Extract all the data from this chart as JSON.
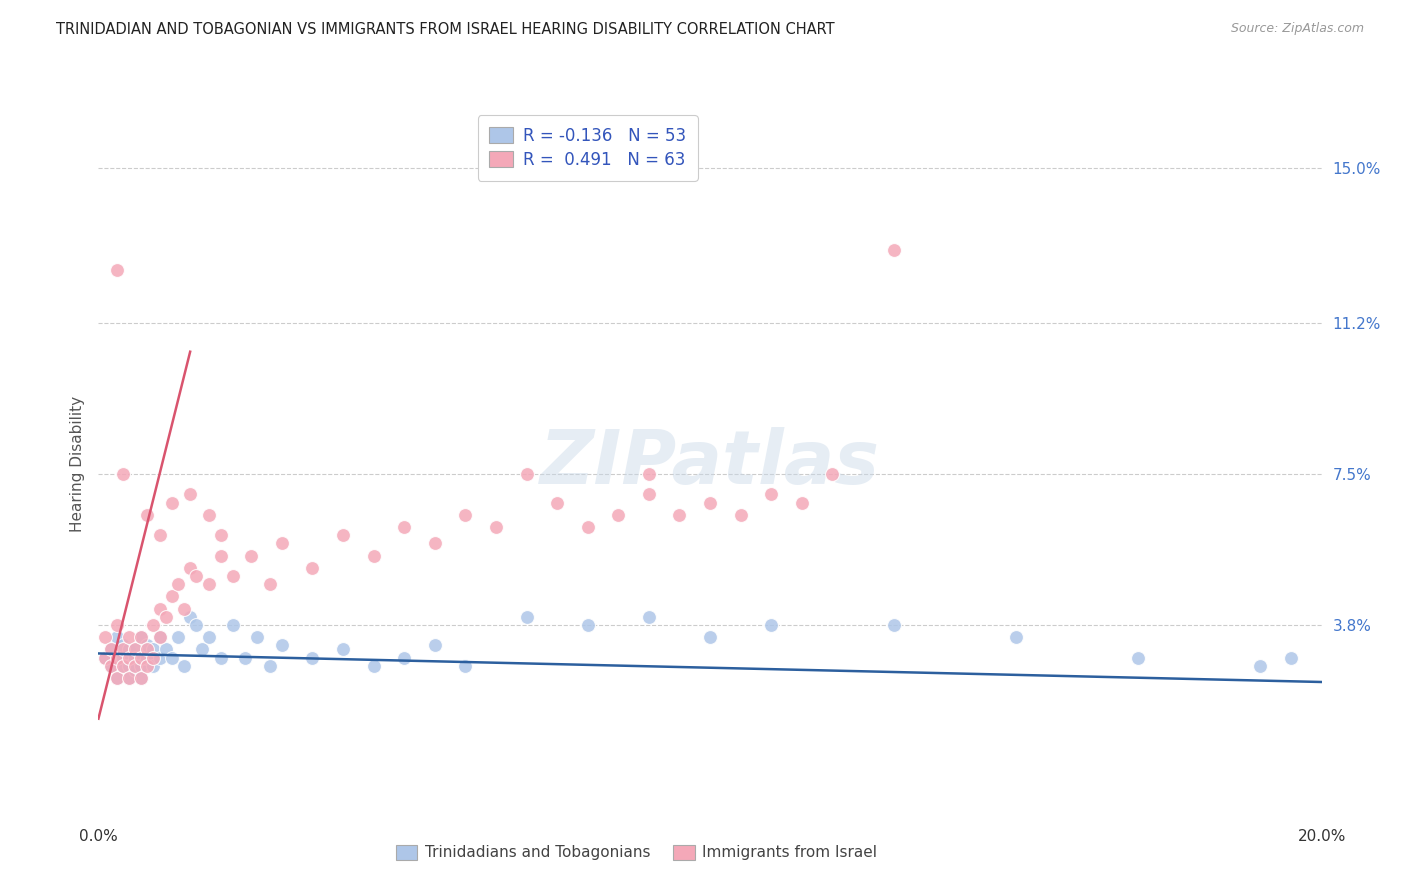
{
  "title": "TRINIDADIAN AND TOBAGONIAN VS IMMIGRANTS FROM ISRAEL HEARING DISABILITY CORRELATION CHART",
  "source": "Source: ZipAtlas.com",
  "ylabel": "Hearing Disability",
  "ytick_labels": [
    "15.0%",
    "11.2%",
    "7.5%",
    "3.8%"
  ],
  "ytick_values": [
    0.15,
    0.112,
    0.075,
    0.038
  ],
  "xlim": [
    0.0,
    0.2
  ],
  "ylim": [
    -0.01,
    0.165
  ],
  "series1_label": "Trinidadians and Tobagonians",
  "series1_R": "-0.136",
  "series1_N": "53",
  "series1_color": "#aec6e8",
  "series1_line_color": "#2c5f9e",
  "series2_label": "Immigrants from Israel",
  "series2_R": "0.491",
  "series2_N": "63",
  "series2_color": "#f4a8b8",
  "series2_line_color": "#d9546e",
  "background_color": "#ffffff",
  "grid_color": "#cccccc",
  "series1_x": [
    0.001,
    0.002,
    0.002,
    0.003,
    0.003,
    0.004,
    0.004,
    0.004,
    0.005,
    0.005,
    0.005,
    0.006,
    0.006,
    0.006,
    0.007,
    0.007,
    0.007,
    0.008,
    0.008,
    0.009,
    0.009,
    0.01,
    0.01,
    0.011,
    0.012,
    0.013,
    0.014,
    0.015,
    0.016,
    0.017,
    0.018,
    0.02,
    0.022,
    0.024,
    0.026,
    0.028,
    0.03,
    0.035,
    0.04,
    0.045,
    0.05,
    0.055,
    0.06,
    0.07,
    0.08,
    0.09,
    0.1,
    0.11,
    0.13,
    0.15,
    0.17,
    0.19,
    0.195
  ],
  "series1_y": [
    0.03,
    0.032,
    0.028,
    0.035,
    0.025,
    0.03,
    0.028,
    0.033,
    0.032,
    0.028,
    0.025,
    0.032,
    0.03,
    0.027,
    0.035,
    0.028,
    0.025,
    0.03,
    0.033,
    0.028,
    0.032,
    0.035,
    0.03,
    0.032,
    0.03,
    0.035,
    0.028,
    0.04,
    0.038,
    0.032,
    0.035,
    0.03,
    0.038,
    0.03,
    0.035,
    0.028,
    0.033,
    0.03,
    0.032,
    0.028,
    0.03,
    0.033,
    0.028,
    0.04,
    0.038,
    0.04,
    0.035,
    0.038,
    0.038,
    0.035,
    0.03,
    0.028,
    0.03
  ],
  "series2_x": [
    0.001,
    0.001,
    0.002,
    0.002,
    0.003,
    0.003,
    0.003,
    0.004,
    0.004,
    0.005,
    0.005,
    0.005,
    0.006,
    0.006,
    0.007,
    0.007,
    0.007,
    0.008,
    0.008,
    0.009,
    0.009,
    0.01,
    0.01,
    0.011,
    0.012,
    0.013,
    0.014,
    0.015,
    0.016,
    0.018,
    0.02,
    0.022,
    0.025,
    0.028,
    0.03,
    0.035,
    0.04,
    0.045,
    0.05,
    0.055,
    0.06,
    0.065,
    0.07,
    0.075,
    0.08,
    0.085,
    0.09,
    0.095,
    0.1,
    0.105,
    0.11,
    0.115,
    0.12,
    0.008,
    0.01,
    0.012,
    0.015,
    0.018,
    0.02,
    0.003,
    0.004,
    0.13,
    0.09
  ],
  "series2_y": [
    0.03,
    0.035,
    0.028,
    0.032,
    0.03,
    0.038,
    0.025,
    0.032,
    0.028,
    0.035,
    0.03,
    0.025,
    0.032,
    0.028,
    0.035,
    0.03,
    0.025,
    0.032,
    0.028,
    0.03,
    0.038,
    0.035,
    0.042,
    0.04,
    0.045,
    0.048,
    0.042,
    0.052,
    0.05,
    0.048,
    0.055,
    0.05,
    0.055,
    0.048,
    0.058,
    0.052,
    0.06,
    0.055,
    0.062,
    0.058,
    0.065,
    0.062,
    0.075,
    0.068,
    0.062,
    0.065,
    0.07,
    0.065,
    0.068,
    0.065,
    0.07,
    0.068,
    0.075,
    0.065,
    0.06,
    0.068,
    0.07,
    0.065,
    0.06,
    0.125,
    0.075,
    0.13,
    0.075
  ]
}
